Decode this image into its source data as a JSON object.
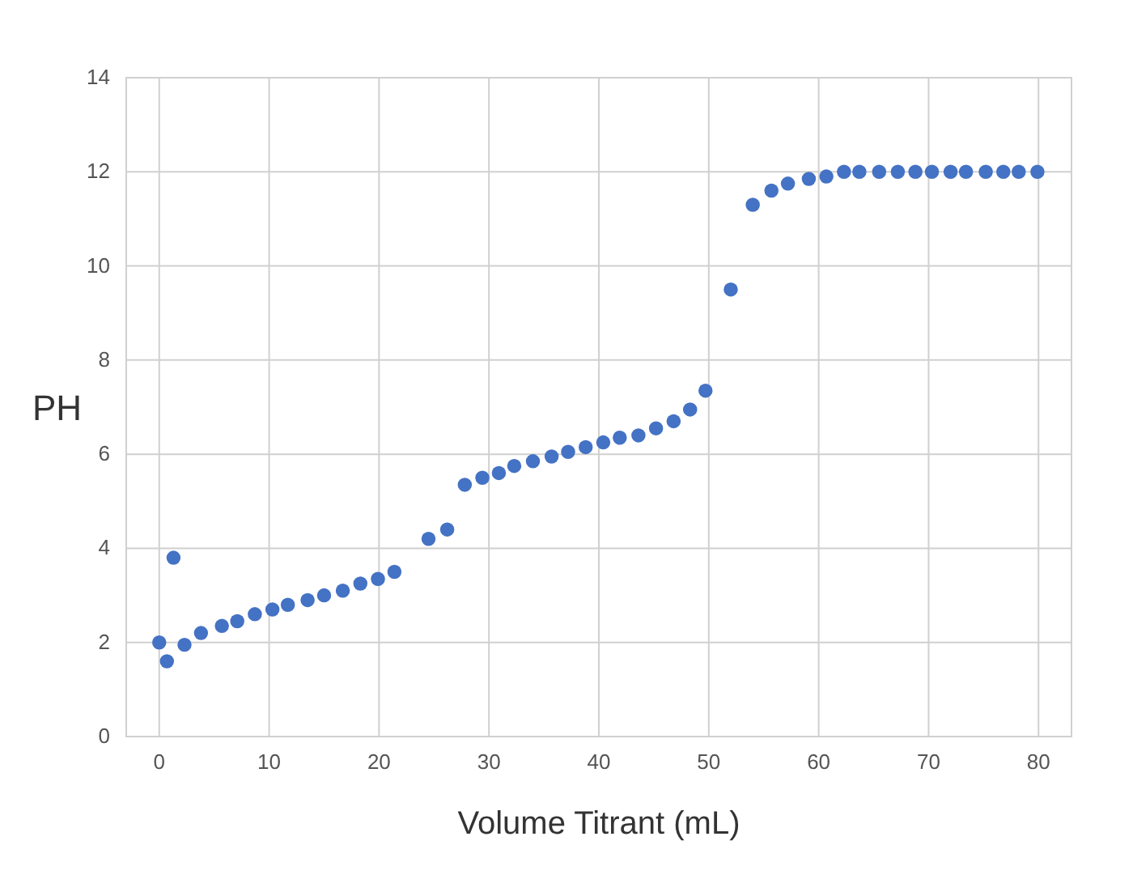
{
  "chart_data": {
    "type": "scatter",
    "xlabel": "Volume Titrant (mL)",
    "ylabel": "PH",
    "x": [
      0,
      0.7,
      1.3,
      2.3,
      3.8,
      5.7,
      7.1,
      8.7,
      10.3,
      11.7,
      13.5,
      15,
      16.7,
      18.3,
      19.9,
      21.4,
      24.5,
      26.2,
      27.8,
      29.4,
      30.9,
      32.3,
      34,
      35.7,
      37.2,
      38.8,
      40.4,
      41.9,
      43.6,
      45.2,
      46.8,
      48.3,
      49.7,
      52,
      54,
      55.7,
      57.2,
      59.1,
      60.7,
      62.3,
      63.7,
      65.5,
      67.2,
      68.8,
      70.3,
      72,
      73.4,
      75.2,
      76.8,
      78.2,
      79.9
    ],
    "series": [
      {
        "color": "#4472c4",
        "values": [
          2,
          1.6,
          3.8,
          1.95,
          2.2,
          2.35,
          2.45,
          2.6,
          2.7,
          2.8,
          2.9,
          3,
          3.1,
          3.25,
          3.35,
          3.5,
          4.2,
          4.4,
          5.35,
          5.5,
          5.6,
          5.75,
          5.85,
          5.95,
          6.05,
          6.15,
          6.25,
          6.35,
          6.4,
          6.55,
          6.7,
          6.95,
          7.35,
          9.5,
          11.3,
          11.6,
          11.75,
          11.85,
          11.9,
          12,
          12,
          12,
          12,
          12,
          12,
          12,
          12,
          12,
          12,
          12,
          12
        ]
      }
    ],
    "xlim": [
      -3,
      83
    ],
    "xticks": [
      0,
      10,
      20,
      30,
      40,
      50,
      60,
      70,
      80
    ],
    "ylim": [
      0,
      14
    ],
    "yticks": [
      0,
      2,
      4,
      6,
      8,
      10,
      12,
      14
    ],
    "grid": true,
    "marker": "circle"
  }
}
